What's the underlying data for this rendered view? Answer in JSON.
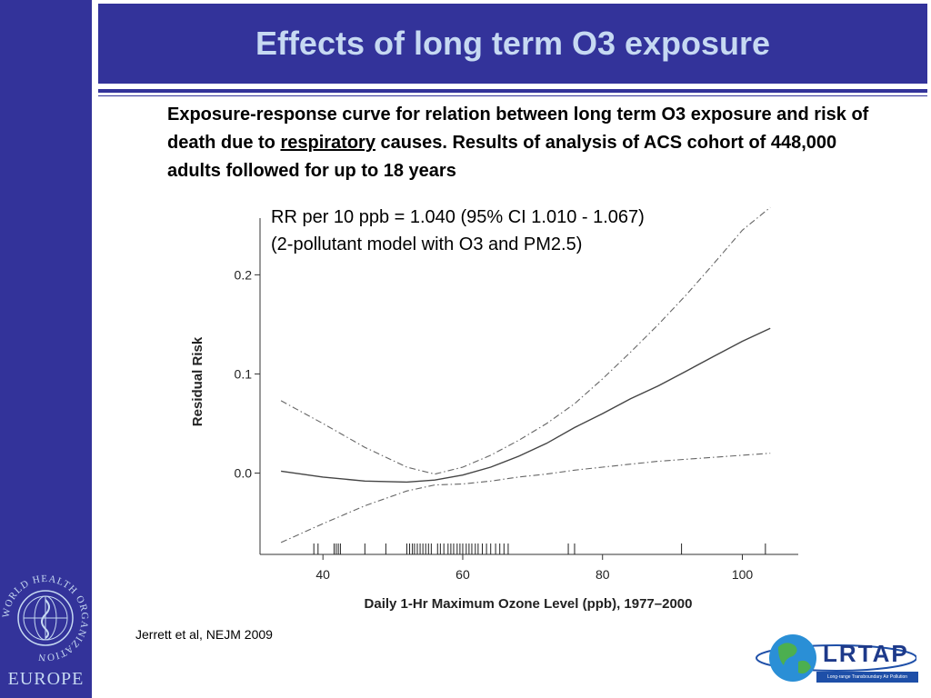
{
  "slide": {
    "title": "Effects of long term O3 exposure",
    "description_pre": "Exposure-response curve for relation between long term O3 exposure and risk of death due to ",
    "description_underlined": "respiratory",
    "description_post": " causes. Results of analysis of ACS cohort of 448,000 adults followed for up to 18 years",
    "rr_line1": "RR per 10 ppb = 1.040 (95% CI 1.010 - 1.067)",
    "rr_line2": "(2-pollutant model with O3 and PM2.5)",
    "citation": "Jerrett et al, NEJM 2009"
  },
  "logos": {
    "who_ring_text": "WORLD HEALTH ORGANIZATION",
    "who_region": "EUROPE",
    "lrtap_name": "LRTAP",
    "lrtap_tagline": "Long-range Transboundary Air Pollution"
  },
  "colors": {
    "brand_blue": "#33339a",
    "title_text": "#c6d9f2"
  },
  "chart_data": {
    "type": "line",
    "xlabel": "Daily 1-Hr Maximum Ozone Level (ppb), 1977–2000",
    "ylabel": "Residual Risk",
    "xlim": [
      31,
      108
    ],
    "ylim": [
      -0.082,
      0.27
    ],
    "xticks": [
      40,
      60,
      80,
      100
    ],
    "yticks": [
      0.0,
      0.1,
      0.2
    ],
    "ytick_labels": [
      "0.0",
      "0.1",
      "0.2"
    ],
    "grid": false,
    "series": [
      {
        "style": "solid",
        "x": [
          34,
          40,
          46,
          52,
          56,
          60,
          64,
          68,
          72,
          76,
          80,
          84,
          88,
          92,
          96,
          100,
          104
        ],
        "y": [
          0.002,
          -0.004,
          -0.008,
          -0.009,
          -0.007,
          -0.002,
          0.006,
          0.017,
          0.03,
          0.046,
          0.06,
          0.075,
          0.088,
          0.103,
          0.118,
          0.133,
          0.146
        ]
      },
      {
        "style": "dash-dot",
        "x": [
          34,
          40,
          46,
          52,
          56,
          60,
          64,
          68,
          72,
          76,
          80,
          84,
          88,
          92,
          96,
          100,
          104
        ],
        "y": [
          0.073,
          0.05,
          0.026,
          0.006,
          -0.001,
          0.006,
          0.018,
          0.033,
          0.05,
          0.07,
          0.095,
          0.122,
          0.15,
          0.18,
          0.212,
          0.245,
          0.268
        ]
      },
      {
        "style": "dash-dot",
        "x": [
          34,
          40,
          46,
          52,
          56,
          60,
          64,
          68,
          72,
          76,
          80,
          84,
          88,
          92,
          96,
          100,
          104
        ],
        "y": [
          -0.07,
          -0.051,
          -0.033,
          -0.018,
          -0.012,
          -0.011,
          -0.008,
          -0.004,
          -0.001,
          0.003,
          0.006,
          0.009,
          0.012,
          0.014,
          0.016,
          0.018,
          0.02
        ]
      }
    ],
    "rug": [
      38.7,
      39.3,
      41.6,
      41.9,
      42.2,
      42.5,
      46.0,
      49.0,
      52.0,
      52.4,
      52.8,
      53.1,
      53.5,
      53.9,
      54.3,
      54.7,
      55.1,
      55.5,
      56.4,
      56.8,
      57.3,
      57.9,
      58.3,
      58.7,
      59.2,
      59.6,
      60.0,
      60.5,
      60.9,
      61.3,
      61.8,
      62.2,
      62.8,
      63.4,
      64.0,
      64.7,
      65.3,
      65.9,
      66.5,
      75.1,
      76.0,
      91.3,
      103.3
    ]
  }
}
